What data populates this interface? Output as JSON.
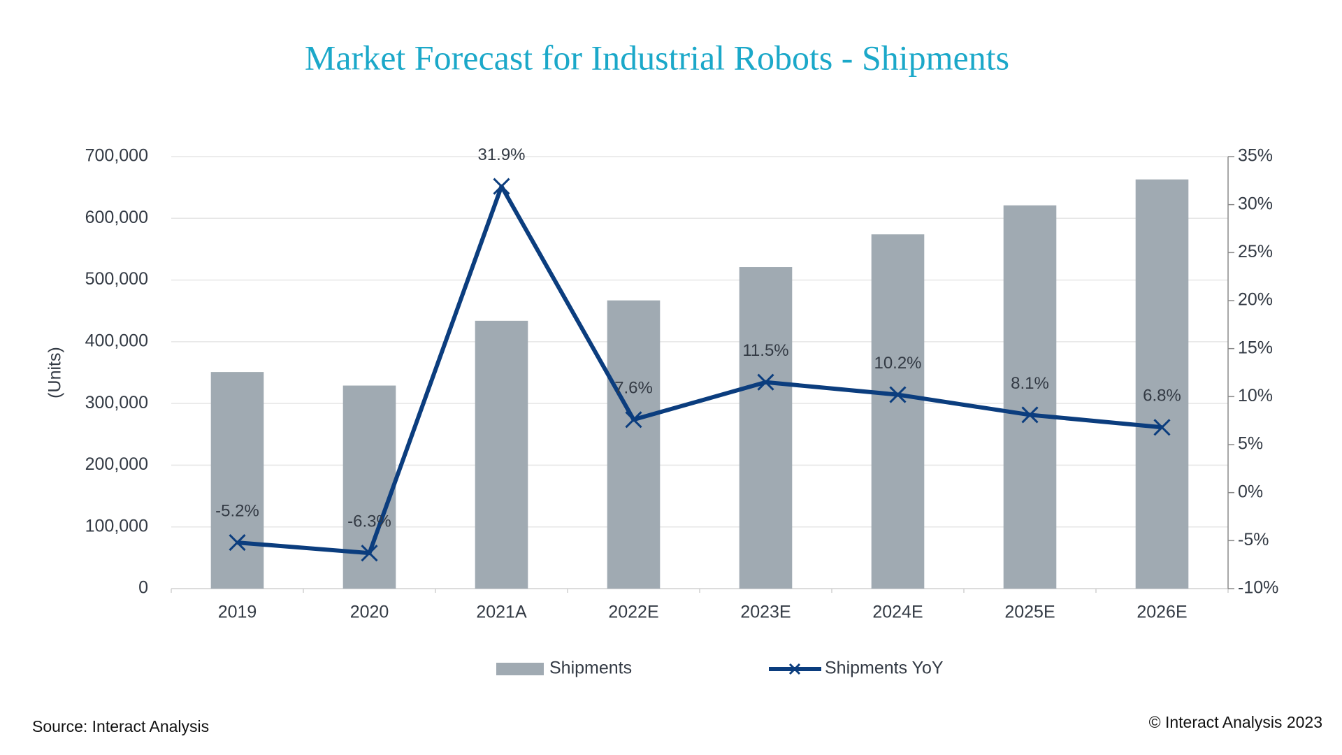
{
  "chart_data": {
    "type": "bar-line",
    "title": "Market Forecast for Industrial Robots - Shipments",
    "y_label": "(Units)",
    "categories": [
      "2019",
      "2020",
      "2021A",
      "2022E",
      "2023E",
      "2024E",
      "2025E",
      "2026E"
    ],
    "series": [
      {
        "name": "Shipments",
        "type": "bar",
        "color": "#a0aab2",
        "axis": "y",
        "values": [
          351000,
          329000,
          434000,
          467000,
          521000,
          574000,
          621000,
          663000
        ]
      },
      {
        "name": "Shipments YoY",
        "type": "line",
        "color": "#0b3d7e",
        "axis": "y2",
        "marker": "x",
        "values": [
          -5.2,
          -6.3,
          31.9,
          7.6,
          11.5,
          10.2,
          8.1,
          6.8
        ],
        "value_labels": [
          "-5.2%",
          "-6.3%",
          "31.9%",
          "7.6%",
          "11.5%",
          "10.2%",
          "8.1%",
          "6.8%"
        ]
      }
    ],
    "ylim": [
      0,
      700000
    ],
    "yticks": [
      0,
      {
        "value": 100000,
        "label": "100,000"
      },
      {
        "value": 200000,
        "label": "200,000"
      },
      {
        "value": 300000,
        "label": "300,000"
      },
      {
        "value": 400000,
        "label": "400,000"
      },
      {
        "value": 500000,
        "label": "500,000"
      },
      {
        "value": 600000,
        "label": "600,000"
      },
      {
        "value": 700000,
        "label": "700,000"
      }
    ],
    "y2lim": [
      -10,
      35
    ],
    "y2ticks": [
      {
        "value": -10,
        "label": "-10%"
      },
      {
        "value": -5,
        "label": "-5%"
      },
      {
        "value": 0,
        "label": "0%"
      },
      {
        "value": 5,
        "label": "5%"
      },
      {
        "value": 10,
        "label": "10%"
      },
      {
        "value": 15,
        "label": "15%"
      },
      {
        "value": 20,
        "label": "20%"
      },
      {
        "value": 25,
        "label": "25%"
      },
      {
        "value": 30,
        "label": "30%"
      },
      {
        "value": 35,
        "label": "35%"
      }
    ],
    "grid": true,
    "legend": "bottom",
    "source": "Source: Interact Analysis",
    "copyright": "© Interact Analysis 2023"
  }
}
